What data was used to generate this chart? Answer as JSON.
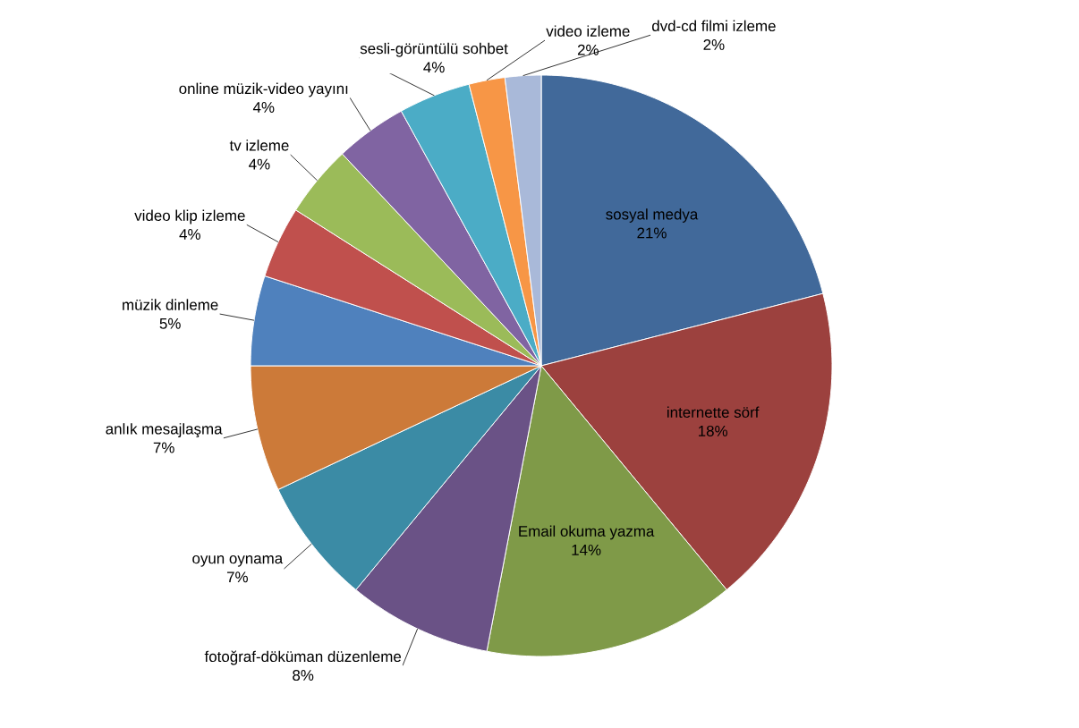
{
  "chart_data": {
    "type": "pie",
    "categories": [
      "sosyal medya",
      "internette sörf",
      "Email okuma yazma",
      "fotoğraf-döküman düzenleme",
      "oyun oynama",
      "anlık mesajlaşma",
      "müzik dinleme",
      "video klip izleme",
      "tv izleme",
      "online müzik-video yayını",
      "sesli-görüntülü sohbet",
      "video izleme",
      "dvd-cd filmi izleme"
    ],
    "values": [
      21,
      18,
      14,
      8,
      7,
      7,
      5,
      4,
      4,
      4,
      4,
      2,
      2
    ],
    "value_labels": [
      "21%",
      "18%",
      "14%",
      "8%",
      "7%",
      "7%",
      "5%",
      "4%",
      "4%",
      "4%",
      "4%",
      "2%",
      "2%"
    ],
    "colors": [
      "#41699a",
      "#9c413e",
      "#7f9a48",
      "#6a5286",
      "#3b8ba5",
      "#cc7a39",
      "#4f81bd",
      "#c0504d",
      "#9bbb59",
      "#8064a2",
      "#4bacc6",
      "#f79646",
      "#a9b9d9"
    ]
  }
}
